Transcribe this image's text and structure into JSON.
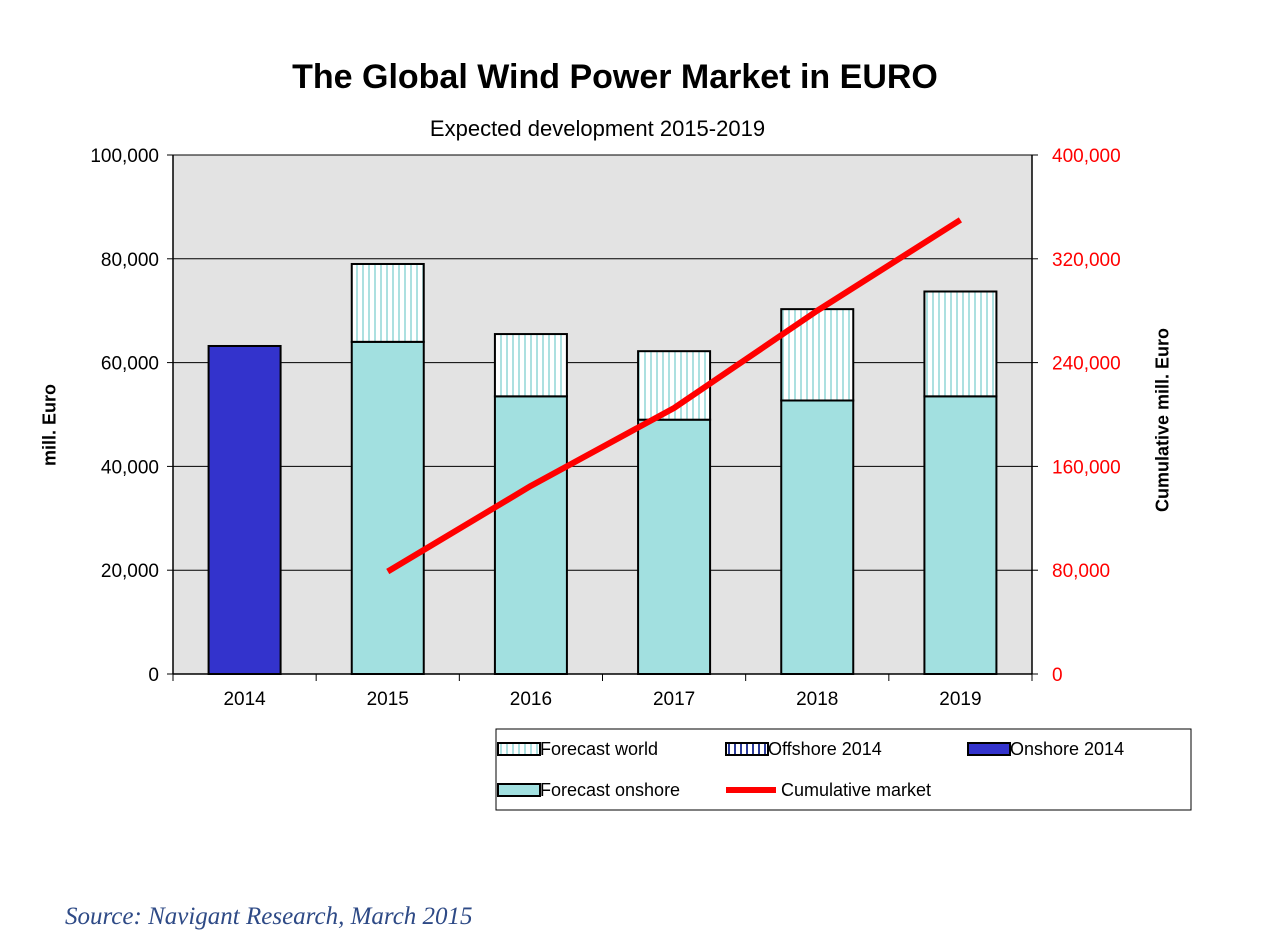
{
  "title": "The Global Wind Power Market in EURO",
  "subtitle": "Expected development 2015-2019",
  "source": "Source: Navigant Research, March 2015",
  "colors": {
    "plot_bg": "#e3e3e3",
    "onshore_2014": "#3333cc",
    "forecast_onshore": "#a2e0e0",
    "forecast_world_hatch": "#8fd8d8",
    "cumulative_line": "#ff0000",
    "right_axis_text": "#ff0000"
  },
  "chart_data": {
    "type": "bar",
    "title": "The Global Wind Power Market in EURO",
    "subtitle": "Expected development 2015-2019",
    "categories": [
      "2014",
      "2015",
      "2016",
      "2017",
      "2018",
      "2019"
    ],
    "ylabel": "mill. Euro",
    "ylim": [
      0,
      100000
    ],
    "yticks": [
      "0",
      "20,000",
      "40,000",
      "60,000",
      "80,000",
      "100,000"
    ],
    "y2label": "Cumulative mill. Euro",
    "y2lim": [
      0,
      400000
    ],
    "y2ticks": [
      "0",
      "80,000",
      "160,000",
      "240,000",
      "320,000",
      "400,000"
    ],
    "grid": true,
    "legend_position": "bottom-right",
    "series": [
      {
        "name": "Onshore 2014",
        "kind": "bar",
        "values": [
          63200,
          null,
          null,
          null,
          null,
          null
        ]
      },
      {
        "name": "Forecast onshore",
        "kind": "bar",
        "stack": "forecast",
        "values": [
          null,
          64000,
          53500,
          49000,
          52700,
          53500
        ]
      },
      {
        "name": "Forecast world",
        "kind": "bar",
        "stack": "forecast",
        "values": [
          null,
          15000,
          12000,
          13200,
          17600,
          20200
        ]
      },
      {
        "name": "Offshore 2014",
        "kind": "bar",
        "values": [
          null,
          null,
          null,
          null,
          null,
          null
        ]
      },
      {
        "name": "Cumulative market",
        "kind": "line",
        "axis": "right",
        "values": [
          null,
          79000,
          145000,
          205000,
          280000,
          350000
        ]
      }
    ],
    "legend": [
      {
        "name": "Forecast world",
        "symbol": "hatch"
      },
      {
        "name": "Offshore 2014",
        "symbol": "hatch-dark"
      },
      {
        "name": "Onshore 2014",
        "symbol": "solid-blue"
      },
      {
        "name": "Forecast onshore",
        "symbol": "solid-teal"
      },
      {
        "name": "Cumulative market",
        "symbol": "line-red"
      }
    ]
  }
}
